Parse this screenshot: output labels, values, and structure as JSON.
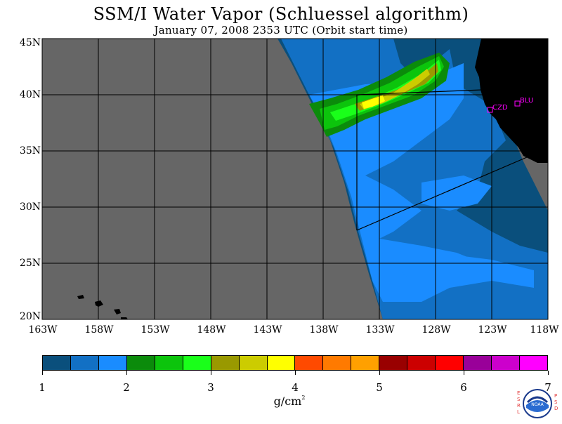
{
  "title": "SSM/I Water Vapor (Schluessel algorithm)",
  "subtitle": "January 07, 2008  2353 UTC  (Orbit start time)",
  "lat_labels": [
    "45N",
    "40N",
    "35N",
    "30N",
    "25N",
    "20N"
  ],
  "lon_labels": [
    "163W",
    "158W",
    "153W",
    "148W",
    "143W",
    "138W",
    "133W",
    "128W",
    "123W",
    "118W"
  ],
  "stations": [
    {
      "id": "CZD"
    },
    {
      "id": "BLU"
    }
  ],
  "colorbar": {
    "colors": [
      "#0a4f7c",
      "#1270c4",
      "#1a8cff",
      "#0b8b0b",
      "#0cc40c",
      "#1aff1a",
      "#999900",
      "#cccc00",
      "#ffff00",
      "#ff4a00",
      "#ff7a00",
      "#ffa000",
      "#990000",
      "#cc0000",
      "#ff0000",
      "#990099",
      "#cc00cc",
      "#ff00ff"
    ],
    "ticks": [
      "1",
      "2",
      "3",
      "4",
      "5",
      "6",
      "7"
    ],
    "units_label": "g/cm",
    "units_exp": "2"
  },
  "colors": {
    "no_data": "#666666",
    "land": "#000000",
    "station_marker": "#ff00ff"
  },
  "logo": {
    "text": "NOAA",
    "left_letters": "ESRL",
    "right_letters": "PSD"
  }
}
